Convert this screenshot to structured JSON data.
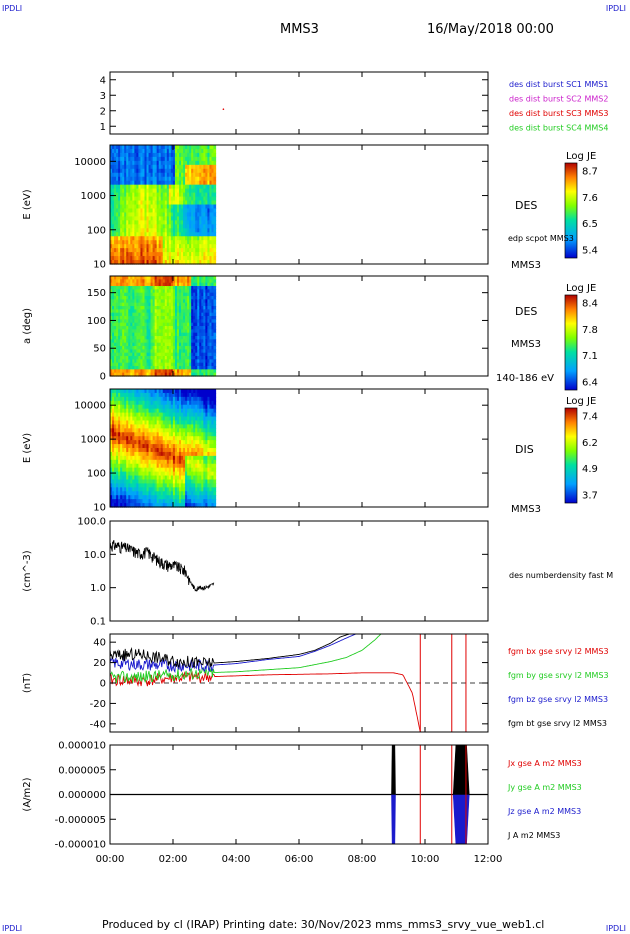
{
  "corners": {
    "tl": "IPDLI",
    "tr": "IPDLI",
    "bl": "IPDLI",
    "br": "IPDLI"
  },
  "header": {
    "spacecraft": "MMS3",
    "datetime": "16/May/2018 00:00"
  },
  "footer": "Produced by cl (IRAP)   Printing date: 30/Nov/2023   mms_mms3_srvy_vue_web1.cl",
  "colors": {
    "c1": "#1a1acc",
    "c2": "#cc22cc",
    "c3": "#e00000",
    "c4": "#22cc22",
    "bx": "#e00000",
    "by": "#22cc22",
    "bz": "#1a1acc",
    "bt": "#000000"
  },
  "chart_data": [
    {
      "type": "line",
      "id": "availability",
      "yticks": [
        "1",
        "2",
        "3",
        "4"
      ],
      "ylim": [
        0.5,
        4.5
      ],
      "legend": [
        "des dist burst SC1 MMS1",
        "des dist burst SC2 MMS2",
        "des dist burst SC3 MMS3",
        "des dist burst SC4 MMS4"
      ],
      "points": [
        {
          "t": 3.6,
          "y": 2.1
        }
      ]
    },
    {
      "type": "heatmap",
      "id": "des-energy",
      "ylabel": "E (eV)",
      "yscale": "log",
      "ylim": [
        10,
        30000
      ],
      "yticks": [
        "10",
        "100",
        "1000",
        "10000"
      ],
      "label": "DES",
      "side": "edp scpot MMS3",
      "spacecraft": "MMS3",
      "colorbar": {
        "title": "Log JE",
        "ticks": [
          "8.7",
          "7.6",
          "6.5",
          "5.4"
        ]
      },
      "data_end": 3.35
    },
    {
      "type": "heatmap",
      "id": "des-pitch",
      "ylabel": "a (deg)",
      "ylim": [
        0,
        180
      ],
      "yticks": [
        "0",
        "50",
        "100",
        "150"
      ],
      "label": "DES",
      "spacecraft": "MMS3",
      "range": "140-186 eV",
      "colorbar": {
        "title": "Log JE",
        "ticks": [
          "8.4",
          "7.8",
          "7.1",
          "6.4"
        ]
      },
      "data_end": 3.35
    },
    {
      "type": "heatmap",
      "id": "dis-energy",
      "ylabel": "E (eV)",
      "yscale": "log",
      "ylim": [
        10,
        30000
      ],
      "yticks": [
        "10",
        "100",
        "1000",
        "10000"
      ],
      "label": "DIS",
      "spacecraft": "MMS3",
      "colorbar": {
        "title": "Log JE",
        "ticks": [
          "7.4",
          "6.2",
          "4.9",
          "3.7"
        ]
      },
      "data_end": 3.35
    },
    {
      "type": "line",
      "id": "density",
      "ylabel": "(cm^-3)",
      "yscale": "log",
      "ylim": [
        0.1,
        100
      ],
      "yticks": [
        "0.1",
        "1.0",
        "10.0",
        "100.0"
      ],
      "legend": [
        "des numberdensity fast M"
      ],
      "series": [
        {
          "name": "des numberdensity fast M",
          "t": [
            0,
            0.3,
            0.6,
            0.9,
            1.2,
            1.5,
            1.8,
            2.1,
            2.4,
            2.55,
            2.7,
            2.85,
            3.0,
            3.15,
            3.3
          ],
          "y": [
            20,
            18,
            15,
            11,
            12,
            7,
            5,
            4.5,
            3.2,
            1.5,
            0.9,
            1.0,
            1.0,
            1.1,
            1.3
          ]
        }
      ]
    },
    {
      "type": "line",
      "id": "fgm",
      "ylabel": "(nT)",
      "ylim": [
        -48,
        48
      ],
      "yticks": [
        "-40",
        "-20",
        "0",
        "20",
        "40"
      ],
      "legend": [
        "fgm bx gse srvy l2 MMS3",
        "fgm by gse srvy l2 MMS3",
        "fgm bz gse srvy l2 MMS3",
        "fgm bt gse srvy l2 MMS3"
      ],
      "series": [
        {
          "name": "fgm bx gse srvy l2 MMS3",
          "t": [
            0,
            1,
            2,
            3,
            4,
            5,
            6,
            7,
            8,
            9,
            9.3,
            9.6,
            9.85
          ],
          "y": [
            3,
            2,
            5,
            6,
            7,
            8,
            8.5,
            9,
            10,
            10,
            8,
            -10,
            -48
          ]
        },
        {
          "name": "fgm by gse srvy l2 MMS3",
          "t": [
            0,
            1,
            2,
            3,
            4,
            5,
            6,
            7,
            7.5,
            8,
            8.4,
            8.6
          ],
          "y": [
            5,
            6,
            8,
            10,
            11,
            13,
            15,
            21,
            25,
            32,
            42,
            48
          ]
        },
        {
          "name": "fgm bz gse srvy l2 MMS3",
          "t": [
            0,
            1,
            2,
            3,
            4,
            5,
            6,
            6.5,
            7,
            7.5,
            7.8
          ],
          "y": [
            20,
            18,
            17,
            17,
            19,
            23,
            26,
            31,
            37,
            44,
            48
          ]
        },
        {
          "name": "fgm bt gse srvy l2 MMS3",
          "t": [
            0,
            1,
            2,
            3,
            4,
            5,
            6,
            6.5,
            7,
            7.3,
            7.6
          ],
          "y": [
            27,
            28,
            22,
            19,
            21,
            24,
            28,
            32,
            39,
            45,
            48
          ]
        }
      ],
      "vlines": [
        9.85,
        10.85,
        11.3
      ]
    },
    {
      "type": "line",
      "id": "current",
      "ylabel": "(A/m2)",
      "ylim": [
        -1e-05,
        1e-05
      ],
      "yticks": [
        "-0.000010",
        "-0.000005",
        "0.000000",
        "0.000005",
        "0.000010"
      ],
      "legend": [
        "Jx gse A m2 MMS3",
        "Jy gse A m2 MMS3",
        "Jz gse A m2 MMS3",
        "J A m2 MMS3"
      ],
      "series": [
        {
          "name": "Jz gse A m2 MMS3",
          "spikes": [
            {
              "t": 9.0,
              "y": -1e-05
            },
            {
              "t": 11.15,
              "y": -1e-05
            }
          ]
        },
        {
          "name": "J A m2 MMS3",
          "spikes": [
            {
              "t": 9.0,
              "y": 1e-05
            },
            {
              "t": 11.15,
              "y": 1e-05
            }
          ]
        }
      ],
      "vlines": [
        9.85,
        10.85,
        11.3
      ]
    }
  ],
  "xaxis": {
    "ticks": [
      "00:00",
      "02:00",
      "04:00",
      "06:00",
      "08:00",
      "10:00",
      "12:00"
    ],
    "range": [
      0,
      12
    ]
  }
}
